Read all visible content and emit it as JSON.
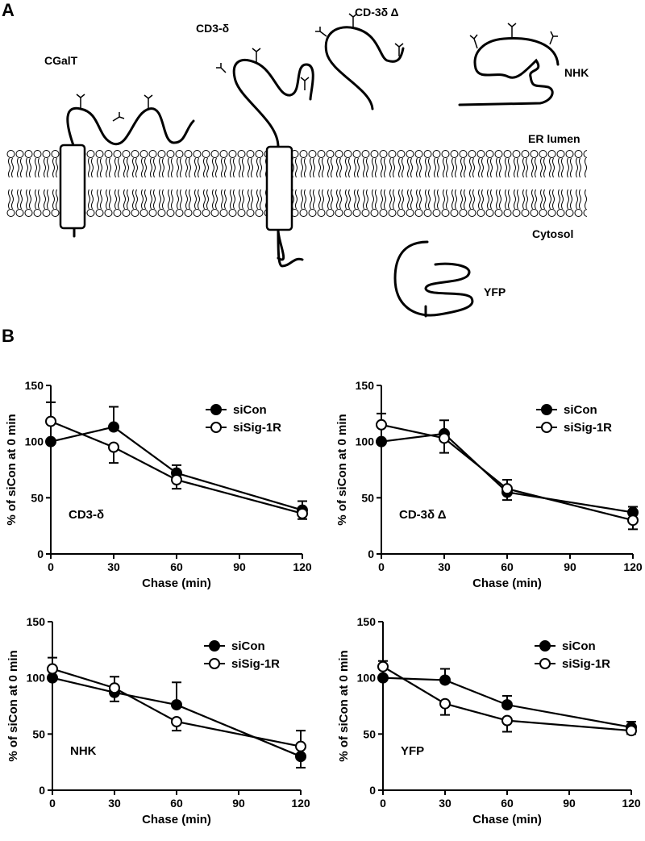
{
  "panel_a": {
    "label": "A",
    "labels": [
      "CGalT",
      "CD3-δ",
      "CD-3δ Δ",
      "NHK",
      "ER lumen",
      "Cytosol",
      "YFP"
    ]
  },
  "panel_b_label": "B",
  "chart_data": [
    {
      "type": "line",
      "annotation": "CD3-δ",
      "x": [
        0,
        30,
        60,
        120
      ],
      "xlim": [
        0,
        120
      ],
      "xticks": [
        0,
        30,
        60,
        90,
        120
      ],
      "ylim": [
        0,
        150
      ],
      "yticks": [
        0,
        50,
        100,
        150
      ],
      "xlabel": "Chase (min)",
      "ylabel": "% of siCon at 0 min",
      "legend": "upper right",
      "series": [
        {
          "name": "siCon",
          "color": "#000000",
          "values": [
            100,
            113,
            72,
            39
          ],
          "errors": [
            0,
            18,
            7,
            8
          ]
        },
        {
          "name": "siSig-1R",
          "color": "#ffffff",
          "values": [
            118,
            95,
            66,
            36
          ],
          "errors": [
            17,
            14,
            8,
            5
          ]
        }
      ]
    },
    {
      "type": "line",
      "annotation": "CD-3δ Δ",
      "x": [
        0,
        30,
        60,
        120
      ],
      "xlim": [
        0,
        120
      ],
      "xticks": [
        0,
        30,
        60,
        90,
        120
      ],
      "ylim": [
        0,
        150
      ],
      "yticks": [
        0,
        50,
        100,
        150
      ],
      "xlabel": "Chase (min)",
      "ylabel": "% of siCon at 0 min",
      "legend": "upper right",
      "series": [
        {
          "name": "siCon",
          "color": "#000000",
          "values": [
            100,
            107,
            55,
            37
          ],
          "errors": [
            0,
            12,
            7,
            5
          ]
        },
        {
          "name": "siSig-1R",
          "color": "#ffffff",
          "values": [
            115,
            103,
            58,
            30
          ],
          "errors": [
            10,
            13,
            8,
            8
          ]
        }
      ]
    },
    {
      "type": "line",
      "annotation": "NHK",
      "x": [
        0,
        30,
        60,
        120
      ],
      "xlim": [
        0,
        120
      ],
      "xticks": [
        0,
        30,
        60,
        90,
        120
      ],
      "ylim": [
        0,
        150
      ],
      "yticks": [
        0,
        50,
        100,
        150
      ],
      "xlabel": "Chase (min)",
      "ylabel": "% of siCon at 0 min",
      "legend": "upper right",
      "series": [
        {
          "name": "siCon",
          "color": "#000000",
          "values": [
            100,
            87,
            76,
            30
          ],
          "errors": [
            0,
            8,
            20,
            10
          ]
        },
        {
          "name": "siSig-1R",
          "color": "#ffffff",
          "values": [
            108,
            91,
            61,
            39
          ],
          "errors": [
            10,
            10,
            8,
            14
          ]
        }
      ]
    },
    {
      "type": "line",
      "annotation": "YFP",
      "x": [
        0,
        30,
        60,
        120
      ],
      "xlim": [
        0,
        120
      ],
      "xticks": [
        0,
        30,
        60,
        90,
        120
      ],
      "ylim": [
        0,
        150
      ],
      "yticks": [
        0,
        50,
        100,
        150
      ],
      "xlabel": "Chase (min)",
      "ylabel": "% of siCon at 0 min",
      "legend": "upper right",
      "series": [
        {
          "name": "siCon",
          "color": "#000000",
          "values": [
            100,
            98,
            76,
            56
          ],
          "errors": [
            0,
            10,
            8,
            5
          ]
        },
        {
          "name": "siSig-1R",
          "color": "#ffffff",
          "values": [
            110,
            77,
            62,
            53
          ],
          "errors": [
            5,
            10,
            10,
            3
          ]
        }
      ]
    }
  ]
}
